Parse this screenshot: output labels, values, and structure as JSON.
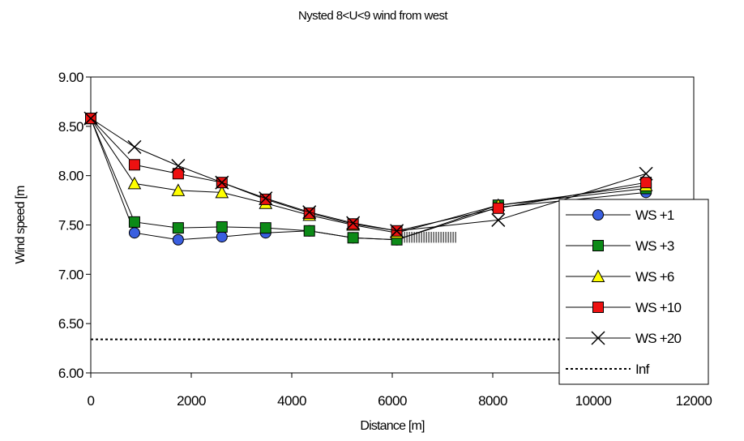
{
  "chart_data": {
    "type": "line",
    "title": "Nysted 8<U<9 wind from west",
    "xlabel": "Distance [m]",
    "ylabel": "Wind speed [m",
    "xlim": [
      0,
      12000
    ],
    "ylim": [
      6.0,
      9.0
    ],
    "xticks": [
      "0",
      "2000",
      "4000",
      "6000",
      "8000",
      "10000",
      "12000"
    ],
    "xtick_values": [
      0,
      2000,
      4000,
      6000,
      8000,
      10000,
      12000
    ],
    "yticks": [
      "6.00",
      "6.50",
      "7.00",
      "7.50",
      "8.00",
      "8.50",
      "9.00"
    ],
    "ytick_values": [
      6.0,
      6.5,
      7.0,
      7.5,
      8.0,
      8.5,
      9.0
    ],
    "grid": false,
    "legend_position": "right",
    "series": [
      {
        "name": "WS +1",
        "marker": "circle",
        "fill": "#3a5fe0",
        "x": [
          0,
          870,
          1740,
          2610,
          3480,
          4350,
          5220,
          6090,
          8110,
          11050
        ],
        "y": [
          8.58,
          7.42,
          7.35,
          7.38,
          7.42,
          7.44,
          7.37,
          7.35,
          7.68,
          7.83
        ]
      },
      {
        "name": "WS +3",
        "marker": "square",
        "fill": "#0c8a17",
        "x": [
          0,
          870,
          1740,
          2610,
          3480,
          4350,
          5220,
          6090,
          8110,
          11050
        ],
        "y": [
          8.58,
          7.53,
          7.47,
          7.48,
          7.47,
          7.44,
          7.37,
          7.35,
          7.7,
          7.87
        ]
      },
      {
        "name": "WS +6",
        "marker": "triangle",
        "fill": "#ffff00",
        "x": [
          0,
          870,
          1740,
          2610,
          3480,
          4350,
          5220,
          6090,
          8110,
          11050
        ],
        "y": [
          8.58,
          7.92,
          7.85,
          7.83,
          7.72,
          7.6,
          7.5,
          7.42,
          7.7,
          7.9
        ]
      },
      {
        "name": "WS +10",
        "marker": "square",
        "fill": "#ee1111",
        "x": [
          0,
          870,
          1740,
          2610,
          3480,
          4350,
          5220,
          6090,
          8110,
          11050
        ],
        "y": [
          8.58,
          8.11,
          8.02,
          7.93,
          7.76,
          7.62,
          7.51,
          7.44,
          7.67,
          7.93
        ]
      },
      {
        "name": "WS +20",
        "marker": "x",
        "fill": "none",
        "x": [
          0,
          870,
          1740,
          2610,
          3480,
          4350,
          5220,
          6090,
          8110,
          11050
        ],
        "y": [
          8.58,
          8.29,
          8.1,
          7.93,
          7.77,
          7.63,
          7.52,
          7.44,
          7.55,
          8.02
        ]
      },
      {
        "name": "Inf",
        "style": "dotted",
        "x": [
          0,
          12000
        ],
        "y": [
          6.34,
          6.34
        ]
      }
    ],
    "annotations": {
      "hatched_band": {
        "x_range": [
          6050,
          7300
        ],
        "y_range": [
          7.32,
          7.43
        ]
      }
    }
  }
}
